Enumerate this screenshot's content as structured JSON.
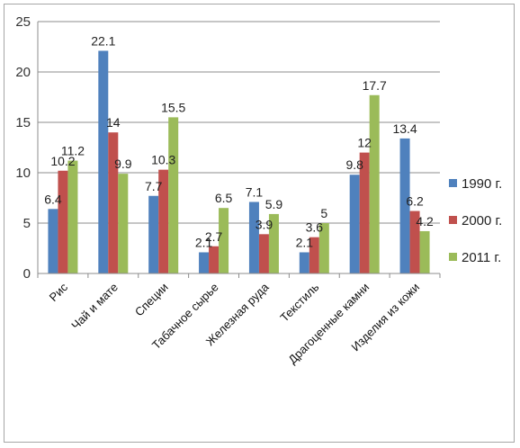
{
  "chart_data": {
    "type": "bar",
    "categories": [
      "Рис",
      "Чай и мате",
      "Специи",
      "Табачное сырье",
      "Железная руда",
      "Текстиль",
      "Драгоценные камни",
      "Изделия из кожи"
    ],
    "series": [
      {
        "name": "1990 г.",
        "color": "#4f81bd",
        "values": [
          6.4,
          22.1,
          7.7,
          2.1,
          7.1,
          2.1,
          9.8,
          13.4
        ]
      },
      {
        "name": "2000 г.",
        "color": "#c0504d",
        "values": [
          10.2,
          14,
          10.3,
          2.7,
          3.9,
          3.6,
          12,
          6.2
        ]
      },
      {
        "name": "2011 г.",
        "color": "#9bbb59",
        "values": [
          11.2,
          9.9,
          15.5,
          6.5,
          5.9,
          5,
          17.7,
          4.2
        ]
      }
    ],
    "ylim": [
      0,
      25
    ],
    "yticks": [
      0,
      5,
      10,
      15,
      20,
      25
    ],
    "grid": true,
    "legend_position": "right",
    "title": "",
    "xlabel": "",
    "ylabel": ""
  }
}
